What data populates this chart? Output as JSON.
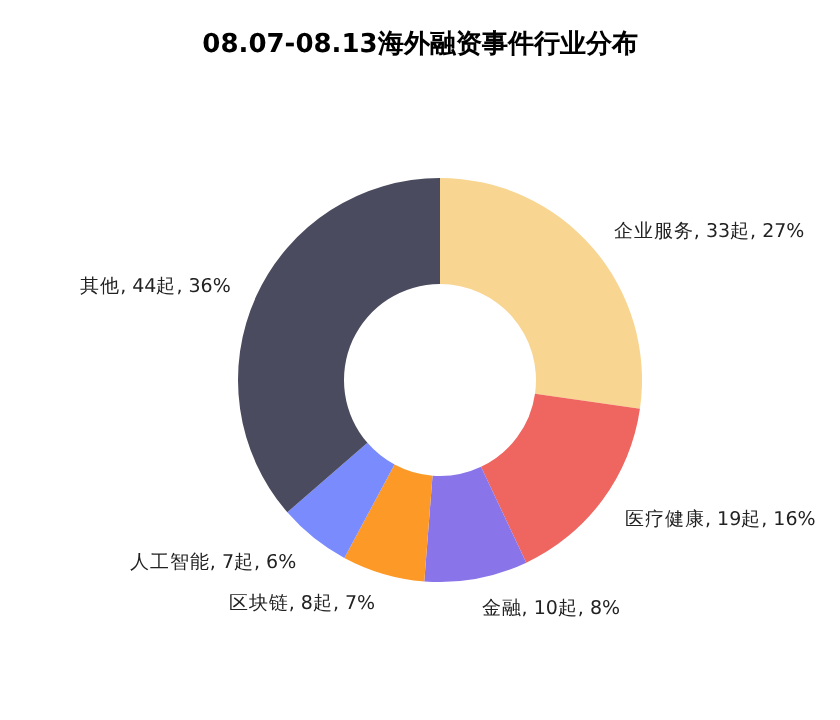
{
  "chart_data": {
    "type": "donut",
    "title": "08.07-08.13海外融资事件行业分布",
    "categories": [
      "企业服务",
      "医疗健康",
      "金融",
      "区块链",
      "人工智能",
      "其他"
    ],
    "values": [
      33,
      19,
      10,
      8,
      7,
      44
    ],
    "value_labels": [
      "33起, 27%",
      "19起, 16%",
      "10起, 8%",
      "8起, 7%",
      "7起, 6%",
      "44起, 36%"
    ],
    "colors": [
      "#f8d591",
      "#ef6560",
      "#8a74ea",
      "#fd9a27",
      "#7a8bfd",
      "#4b4b5f"
    ]
  }
}
